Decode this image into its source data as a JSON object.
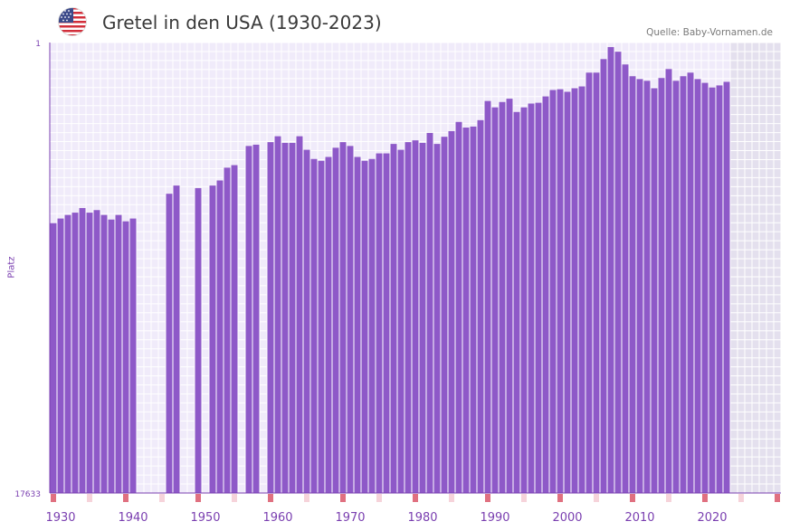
{
  "title": "Gretel in den USA (1930-2023)",
  "source": "Quelle: Baby-Vornamen.de",
  "flag_icon": "us-flag-icon",
  "colors": {
    "bar": "#8e59c8",
    "axis": "#7a3fb0",
    "plot_bg": "#f0ebfa",
    "future_bg": "#e4e0ee",
    "marker_strong": "#e07080",
    "marker_light": "#f6d3da"
  },
  "chart_data": {
    "type": "bar",
    "title": "Gretel in den USA (1930-2023)",
    "xlabel": "",
    "ylabel": "Platz",
    "y_axis_inverted": true,
    "ylim": [
      1,
      17633
    ],
    "y_ticks": [
      "1",
      "17633"
    ],
    "xlim": [
      1929,
      2029
    ],
    "x_ticks": [
      1930,
      1940,
      1950,
      1960,
      1970,
      1980,
      1990,
      2000,
      2010,
      2020
    ],
    "forecast_region_start": 2023,
    "series": [
      {
        "name": "Platz",
        "points": [
          [
            1929,
            7070
          ],
          [
            1930,
            6890
          ],
          [
            1931,
            6750
          ],
          [
            1932,
            6660
          ],
          [
            1933,
            6480
          ],
          [
            1934,
            6660
          ],
          [
            1935,
            6560
          ],
          [
            1936,
            6750
          ],
          [
            1937,
            6930
          ],
          [
            1938,
            6750
          ],
          [
            1939,
            7000
          ],
          [
            1940,
            6890
          ],
          [
            1945,
            5920
          ],
          [
            1946,
            5600
          ],
          [
            1949,
            5700
          ],
          [
            1951,
            5600
          ],
          [
            1952,
            5400
          ],
          [
            1953,
            4900
          ],
          [
            1954,
            4800
          ],
          [
            1956,
            4050
          ],
          [
            1957,
            4000
          ],
          [
            1959,
            3900
          ],
          [
            1960,
            3670
          ],
          [
            1961,
            3930
          ],
          [
            1962,
            3930
          ],
          [
            1963,
            3670
          ],
          [
            1964,
            4200
          ],
          [
            1965,
            4560
          ],
          [
            1966,
            4630
          ],
          [
            1967,
            4480
          ],
          [
            1968,
            4120
          ],
          [
            1969,
            3900
          ],
          [
            1970,
            4050
          ],
          [
            1971,
            4480
          ],
          [
            1972,
            4630
          ],
          [
            1973,
            4560
          ],
          [
            1974,
            4340
          ],
          [
            1975,
            4340
          ],
          [
            1976,
            3970
          ],
          [
            1977,
            4200
          ],
          [
            1978,
            3900
          ],
          [
            1979,
            3830
          ],
          [
            1980,
            3930
          ],
          [
            1981,
            3540
          ],
          [
            1982,
            3970
          ],
          [
            1983,
            3690
          ],
          [
            1984,
            3470
          ],
          [
            1985,
            3110
          ],
          [
            1986,
            3330
          ],
          [
            1987,
            3290
          ],
          [
            1988,
            3040
          ],
          [
            1989,
            2290
          ],
          [
            1990,
            2540
          ],
          [
            1991,
            2330
          ],
          [
            1992,
            2200
          ],
          [
            1993,
            2720
          ],
          [
            1994,
            2540
          ],
          [
            1995,
            2390
          ],
          [
            1996,
            2360
          ],
          [
            1997,
            2110
          ],
          [
            1998,
            1860
          ],
          [
            1999,
            1830
          ],
          [
            2000,
            1930
          ],
          [
            2001,
            1790
          ],
          [
            2002,
            1720
          ],
          [
            2003,
            1180
          ],
          [
            2004,
            1180
          ],
          [
            2005,
            650
          ],
          [
            2006,
            180
          ],
          [
            2007,
            360
          ],
          [
            2008,
            860
          ],
          [
            2009,
            1320
          ],
          [
            2010,
            1430
          ],
          [
            2011,
            1500
          ],
          [
            2012,
            1790
          ],
          [
            2013,
            1390
          ],
          [
            2014,
            1040
          ],
          [
            2015,
            1500
          ],
          [
            2016,
            1320
          ],
          [
            2017,
            1180
          ],
          [
            2018,
            1430
          ],
          [
            2019,
            1580
          ],
          [
            2020,
            1760
          ],
          [
            2021,
            1680
          ],
          [
            2022,
            1540
          ]
        ]
      }
    ],
    "markers_strong": [
      1929,
      1939,
      1949,
      1959,
      1969,
      1979,
      1989,
      1999,
      2009,
      2019,
      2029
    ],
    "markers_light": [
      1934,
      1944,
      1954,
      1964,
      1974,
      1984,
      1994,
      2004,
      2014,
      2024
    ]
  }
}
